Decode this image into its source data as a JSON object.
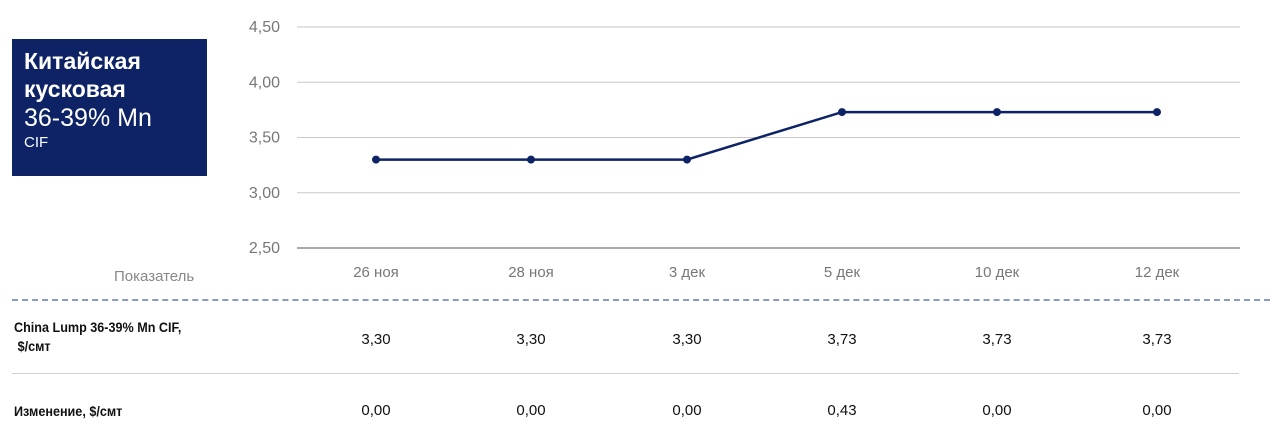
{
  "title": {
    "line1": "Китайская",
    "line2": "кусковая",
    "line3": "36-39% Mn",
    "line4": "CIF"
  },
  "indicator_label": "Показатель",
  "chart_data": {
    "type": "line",
    "categories": [
      "26 ноя",
      "28 ноя",
      "3 дек",
      "5 дек",
      "10 дек",
      "12 дек"
    ],
    "series": [
      {
        "values": [
          3.3,
          3.3,
          3.3,
          3.73,
          3.73,
          3.73
        ],
        "color": "#0d2366"
      }
    ],
    "y_ticks": [
      "2,50",
      "3,00",
      "3,50",
      "4,00",
      "4,50"
    ],
    "ylim": [
      2.5,
      4.5
    ],
    "grid": true
  },
  "table": {
    "rows": [
      {
        "label_line1": "China Lump 36-39% Mn CIF,",
        "label_line2": "$/смт",
        "values": [
          "3,30",
          "3,30",
          "3,30",
          "3,73",
          "3,73",
          "3,73"
        ]
      },
      {
        "label_line1": "Изменение, $/смт",
        "label_line2": "",
        "values": [
          "0,00",
          "0,00",
          "0,00",
          "0,43",
          "0,00",
          "0,00"
        ]
      }
    ]
  }
}
